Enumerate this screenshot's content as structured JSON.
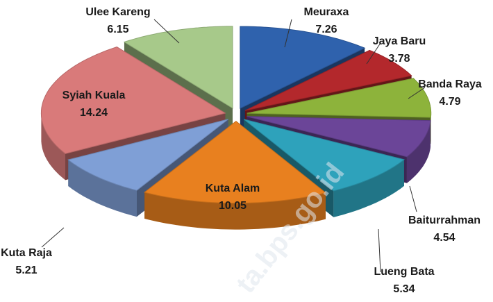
{
  "chart_data": {
    "type": "pie",
    "categories": [
      "Meuraxa",
      "Jaya Baru",
      "Banda Raya",
      "Baiturrahman",
      "Lueng Bata",
      "Kuta Alam",
      "Kuta Raja",
      "Syiah Kuala",
      "Ulee Kareng"
    ],
    "values": [
      7.26,
      3.78,
      4.79,
      4.54,
      5.34,
      10.05,
      5.21,
      14.24,
      6.15
    ],
    "colors": [
      "#2f62ad",
      "#b3282c",
      "#8db33b",
      "#6b4598",
      "#2ea2bb",
      "#e8801f",
      "#7f9fd6",
      "#d97a7a",
      "#a7c98a"
    ],
    "watermark": "ta.bps.go.id"
  }
}
